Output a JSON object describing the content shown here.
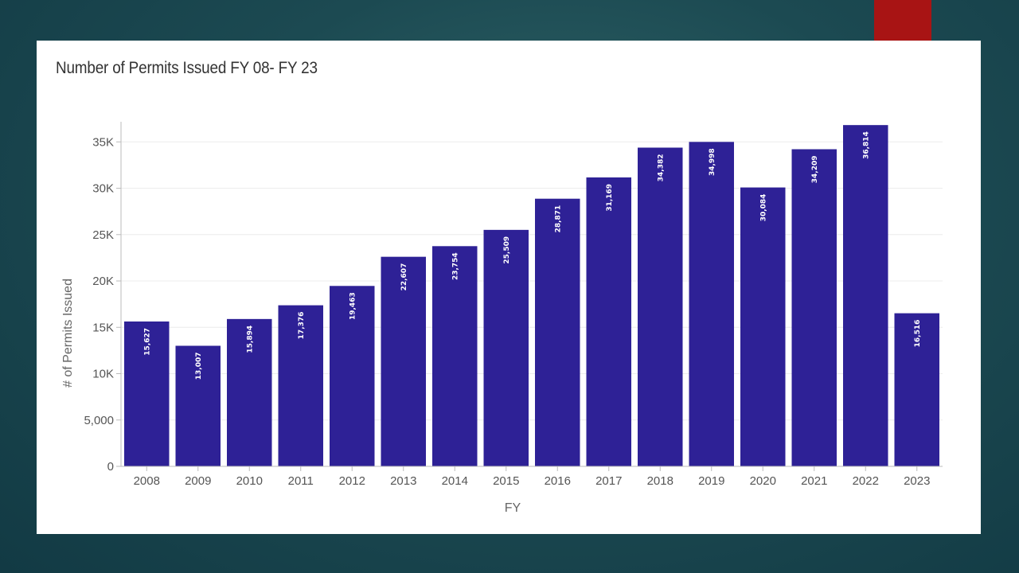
{
  "colors": {
    "bar": "#2e2196",
    "accent_tab": "#a81414",
    "grid": "#ececec",
    "axis": "#bbbbbb"
  },
  "chart_data": {
    "type": "bar",
    "title": "Number of Permits Issued FY 08- FY 23",
    "xlabel": "FY",
    "ylabel": "# of Permits Issued",
    "ylim": [
      0,
      37000
    ],
    "yticks": [
      {
        "value": 0,
        "label": "0"
      },
      {
        "value": 5000,
        "label": "5,000"
      },
      {
        "value": 10000,
        "label": "10K"
      },
      {
        "value": 15000,
        "label": "15K"
      },
      {
        "value": 20000,
        "label": "20K"
      },
      {
        "value": 25000,
        "label": "25K"
      },
      {
        "value": 30000,
        "label": "30K"
      },
      {
        "value": 35000,
        "label": "35K"
      }
    ],
    "categories": [
      "2008",
      "2009",
      "2010",
      "2011",
      "2012",
      "2013",
      "2014",
      "2015",
      "2016",
      "2017",
      "2018",
      "2019",
      "2020",
      "2021",
      "2022",
      "2023"
    ],
    "values": [
      15627,
      13007,
      15894,
      17376,
      19463,
      22607,
      23754,
      25509,
      28871,
      31169,
      34382,
      34998,
      30084,
      34209,
      36814,
      16516
    ],
    "data_labels": [
      "15,627",
      "13,007",
      "15,894",
      "17,376",
      "19,463",
      "22,607",
      "23,754",
      "25,509",
      "28,871",
      "31,169",
      "34,382",
      "34,998",
      "30,084",
      "34,209",
      "36,814",
      "16,516"
    ]
  }
}
